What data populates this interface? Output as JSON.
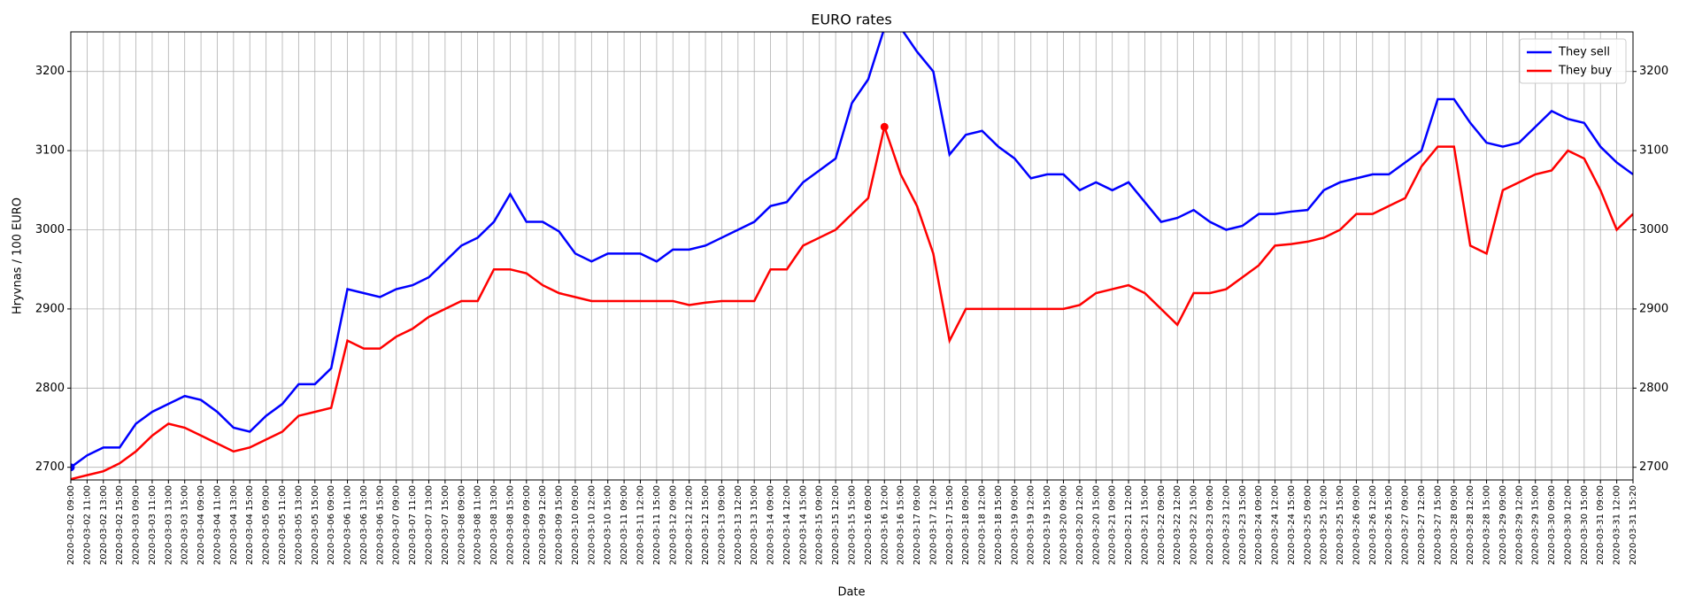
{
  "chart_data": {
    "type": "line",
    "title": "EURO rates",
    "x_label": "Date",
    "y_label": "Hryvnas / 100 EURO",
    "categories": [
      "2020-03-02 09:00",
      "2020-03-02 11:00",
      "2020-03-02 13:00",
      "2020-03-02 15:00",
      "2020-03-03 09:00",
      "2020-03-03 11:00",
      "2020-03-03 13:00",
      "2020-03-03 15:00",
      "2020-03-04 09:00",
      "2020-03-04 11:00",
      "2020-03-04 13:00",
      "2020-03-04 15:00",
      "2020-03-05 09:00",
      "2020-03-05 11:00",
      "2020-03-05 13:00",
      "2020-03-05 15:00",
      "2020-03-06 09:00",
      "2020-03-06 11:00",
      "2020-03-06 13:00",
      "2020-03-06 15:00",
      "2020-03-07 09:00",
      "2020-03-07 11:00",
      "2020-03-07 13:00",
      "2020-03-07 15:00",
      "2020-03-08 09:00",
      "2020-03-08 11:00",
      "2020-03-08 13:00",
      "2020-03-08 15:00",
      "2020-03-09 09:00",
      "2020-03-09 12:00",
      "2020-03-09 15:00",
      "2020-03-10 09:00",
      "2020-03-10 12:00",
      "2020-03-10 15:00",
      "2020-03-11 09:00",
      "2020-03-11 12:00",
      "2020-03-11 15:00",
      "2020-03-12 09:00",
      "2020-03-12 12:00",
      "2020-03-12 15:00",
      "2020-03-13 09:00",
      "2020-03-13 12:00",
      "2020-03-13 15:00",
      "2020-03-14 09:00",
      "2020-03-14 12:00",
      "2020-03-14 15:00",
      "2020-03-15 09:00",
      "2020-03-15 12:00",
      "2020-03-15 15:00",
      "2020-03-16 09:00",
      "2020-03-16 12:00",
      "2020-03-16 15:00",
      "2020-03-17 09:00",
      "2020-03-17 12:00",
      "2020-03-17 15:00",
      "2020-03-18 09:00",
      "2020-03-18 12:00",
      "2020-03-18 15:00",
      "2020-03-19 09:00",
      "2020-03-19 12:00",
      "2020-03-19 15:00",
      "2020-03-20 09:00",
      "2020-03-20 12:00",
      "2020-03-20 15:00",
      "2020-03-21 09:00",
      "2020-03-21 12:00",
      "2020-03-21 15:00",
      "2020-03-22 09:00",
      "2020-03-22 12:00",
      "2020-03-22 15:00",
      "2020-03-23 09:00",
      "2020-03-23 12:00",
      "2020-03-23 15:00",
      "2020-03-24 09:00",
      "2020-03-24 12:00",
      "2020-03-24 15:00",
      "2020-03-25 09:00",
      "2020-03-25 12:00",
      "2020-03-25 15:00",
      "2020-03-26 09:00",
      "2020-03-26 12:00",
      "2020-03-26 15:00",
      "2020-03-27 09:00",
      "2020-03-27 12:00",
      "2020-03-27 15:00",
      "2020-03-28 09:00",
      "2020-03-28 12:00",
      "2020-03-28 15:00",
      "2020-03-29 09:00",
      "2020-03-29 12:00",
      "2020-03-29 15:00",
      "2020-03-30 09:00",
      "2020-03-30 12:00",
      "2020-03-30 15:00",
      "2020-03-31 09:00",
      "2020-03-31 12:00",
      "2020-03-31 15:20"
    ],
    "series": [
      {
        "name": "They sell",
        "color": "#0000ff",
        "marker_index": 0,
        "values": [
          2700,
          2715,
          2725,
          2725,
          2755,
          2770,
          2780,
          2790,
          2785,
          2770,
          2750,
          2745,
          2765,
          2780,
          2805,
          2805,
          2825,
          2925,
          2920,
          2915,
          2925,
          2930,
          2940,
          2960,
          2980,
          2990,
          3010,
          3045,
          3010,
          3010,
          2998,
          2970,
          2960,
          2970,
          2970,
          2970,
          2960,
          2975,
          2975,
          2980,
          2990,
          3000,
          3010,
          3030,
          3035,
          3060,
          3075,
          3090,
          3160,
          3190,
          3255,
          3255,
          3225,
          3200,
          3095,
          3120,
          3125,
          3105,
          3090,
          3065,
          3070,
          3070,
          3050,
          3060,
          3050,
          3060,
          3035,
          3010,
          3015,
          3025,
          3010,
          3000,
          3005,
          3020,
          3020,
          3023,
          3025,
          3050,
          3060,
          3065,
          3070,
          3070,
          3085,
          3100,
          3165,
          3165,
          3135,
          3110,
          3105,
          3110,
          3130,
          3150,
          3140,
          3135,
          3105,
          3085,
          3070
        ]
      },
      {
        "name": "They buy",
        "color": "#ff0000",
        "marker_index": 50,
        "values": [
          2685,
          2690,
          2695,
          2705,
          2720,
          2740,
          2755,
          2750,
          2740,
          2730,
          2720,
          2725,
          2735,
          2745,
          2765,
          2770,
          2775,
          2860,
          2850,
          2850,
          2865,
          2875,
          2890,
          2900,
          2910,
          2910,
          2950,
          2950,
          2945,
          2930,
          2920,
          2915,
          2910,
          2910,
          2910,
          2910,
          2910,
          2910,
          2905,
          2908,
          2910,
          2910,
          2910,
          2950,
          2950,
          2980,
          2990,
          3000,
          3020,
          3040,
          3130,
          3070,
          3030,
          2970,
          2860,
          2900,
          2900,
          2900,
          2900,
          2900,
          2900,
          2900,
          2905,
          2920,
          2925,
          2930,
          2920,
          2900,
          2880,
          2920,
          2920,
          2925,
          2940,
          2955,
          2980,
          2982,
          2985,
          2990,
          3000,
          3020,
          3020,
          3030,
          3040,
          3080,
          3105,
          3105,
          2980,
          2970,
          3050,
          3060,
          3070,
          3075,
          3100,
          3090,
          3050,
          3000,
          3020
        ]
      }
    ],
    "ylim": [
      2684,
      3250
    ],
    "yticks": [
      2700,
      2800,
      2900,
      3000,
      3100,
      3200
    ],
    "grid": true,
    "legend": "upper right"
  }
}
